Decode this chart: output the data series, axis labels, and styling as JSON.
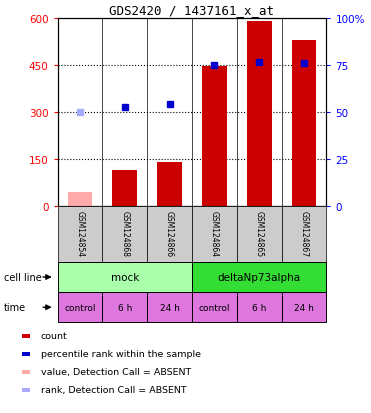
{
  "title": "GDS2420 / 1437161_x_at",
  "samples": [
    "GSM124854",
    "GSM124868",
    "GSM124866",
    "GSM124864",
    "GSM124865",
    "GSM124867"
  ],
  "count_values": [
    45,
    115,
    140,
    445,
    590,
    530
  ],
  "count_absent": [
    true,
    false,
    false,
    false,
    false,
    false
  ],
  "rank_values_pct": [
    50,
    52.5,
    54.2,
    75,
    76.7,
    75.8
  ],
  "rank_absent": [
    true,
    false,
    false,
    false,
    false,
    false
  ],
  "ylim_left": [
    0,
    600
  ],
  "ylim_right": [
    0,
    100
  ],
  "yticks_left": [
    0,
    150,
    300,
    450,
    600
  ],
  "yticks_right": [
    0,
    25,
    50,
    75,
    100
  ],
  "ytick_labels_left": [
    "0",
    "150",
    "300",
    "450",
    "600"
  ],
  "ytick_labels_right": [
    "0",
    "25",
    "50",
    "75",
    "100%"
  ],
  "bar_color": "#cc0000",
  "bar_absent_color": "#ffaaaa",
  "rank_color": "#0000cc",
  "rank_absent_color": "#aaaaff",
  "cell_line_labels": [
    "mock",
    "deltaNp73alpha"
  ],
  "cell_line_spans": [
    [
      0,
      3
    ],
    [
      3,
      6
    ]
  ],
  "cell_line_color_mock": "#aaffaa",
  "cell_line_color_delta": "#33dd33",
  "time_labels": [
    "control",
    "6 h",
    "24 h",
    "control",
    "6 h",
    "24 h"
  ],
  "time_color": "#dd77dd",
  "legend_items": [
    {
      "label": "count",
      "color": "#cc0000"
    },
    {
      "label": "percentile rank within the sample",
      "color": "#0000cc"
    },
    {
      "label": "value, Detection Call = ABSENT",
      "color": "#ffaaaa"
    },
    {
      "label": "rank, Detection Call = ABSENT",
      "color": "#aaaaff"
    }
  ],
  "cell_line_label": "cell line",
  "time_label": "time",
  "bg_color": "#cccccc"
}
